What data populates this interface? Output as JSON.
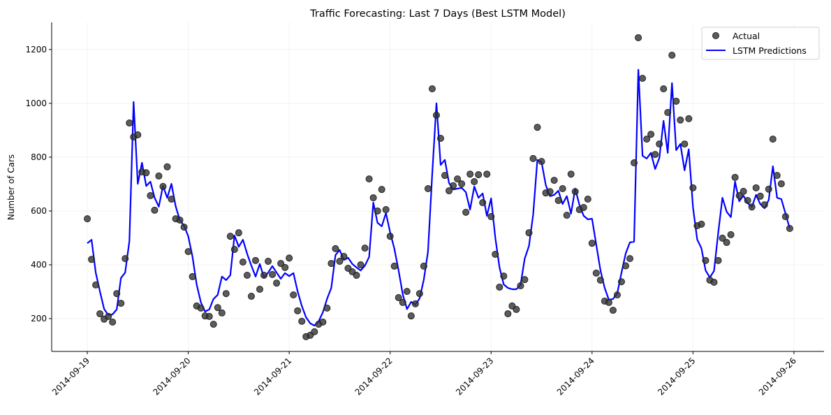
{
  "chart_data": {
    "type": "line",
    "title": "Traffic Forecasting: Last 7 Days (Best LSTM Model)",
    "xlabel": "",
    "ylabel": "Number of Cars",
    "ylim": [
      78,
      1301
    ],
    "xlim_days": [
      -0.353,
      7.298
    ],
    "x_start": "2014-09-19 00:00",
    "x_step": "1 hour",
    "grid": true,
    "legend_position": "top-right",
    "y_ticks": [
      200,
      400,
      600,
      800,
      1000,
      1200
    ],
    "x_ticks": [
      "2014-09-19",
      "2014-09-20",
      "2014-09-21",
      "2014-09-22",
      "2014-09-23",
      "2014-09-24",
      "2014-09-25",
      "2014-09-26"
    ],
    "series": [
      {
        "name": "Actual",
        "kind": "scatter",
        "color": "#333333",
        "values": [
          571,
          420,
          325,
          218,
          198,
          208,
          187,
          293,
          257,
          423,
          927,
          875,
          883,
          745,
          742,
          657,
          603,
          730,
          691,
          764,
          644,
          571,
          566,
          540,
          449,
          356,
          247,
          239,
          210,
          208,
          179,
          241,
          221,
          293,
          506,
          457,
          519,
          410,
          361,
          283,
          416,
          309,
          361,
          413,
          364,
          332,
          405,
          390,
          425,
          288,
          229,
          190,
          133,
          138,
          151,
          179,
          187,
          239,
          405,
          460,
          413,
          431,
          387,
          374,
          361,
          400,
          462,
          719,
          649,
          600,
          680,
          605,
          506,
          395,
          278,
          260,
          301,
          210,
          255,
          293,
          395,
          683,
          1054,
          956,
          870,
          732,
          675,
          694,
          719,
          701,
          595,
          737,
          709,
          735,
          631,
          737,
          579,
          439,
          317,
          358,
          218,
          247,
          234,
          322,
          345,
          519,
          795,
          911,
          784,
          667,
          672,
          714,
          639,
          683,
          584,
          737,
          672,
          605,
          613,
          644,
          480,
          369,
          343,
          265,
          260,
          231,
          288,
          337,
          396,
          423,
          779,
          1244,
          1093,
          867,
          885,
          810,
          849,
          1054,
          966,
          1179,
          1008,
          938,
          849,
          943,
          686,
          545,
          551,
          416,
          343,
          335,
          416,
          499,
          483,
          512,
          725,
          657,
          673,
          639,
          615,
          686,
          655,
          623,
          681,
          867,
          732,
          701,
          579,
          535
        ]
      },
      {
        "name": "LSTM Predictions",
        "kind": "line",
        "color": "#0000ff",
        "values": [
          480,
          493,
          371,
          301,
          236,
          213,
          216,
          234,
          351,
          371,
          488,
          1005,
          701,
          779,
          693,
          709,
          649,
          616,
          693,
          649,
          701,
          618,
          566,
          545,
          506,
          431,
          327,
          260,
          226,
          234,
          273,
          288,
          356,
          343,
          361,
          509,
          467,
          493,
          441,
          397,
          356,
          403,
          353,
          371,
          395,
          371,
          348,
          369,
          358,
          369,
          301,
          247,
          205,
          182,
          174,
          190,
          223,
          273,
          314,
          436,
          455,
          418,
          426,
          403,
          390,
          379,
          397,
          429,
          631,
          556,
          543,
          592,
          520,
          460,
          380,
          290,
          235,
          262,
          252,
          275,
          345,
          449,
          735,
          1000,
          771,
          790,
          704,
          680,
          683,
          686,
          670,
          605,
          691,
          649,
          665,
          582,
          647,
          500,
          390,
          327,
          314,
          309,
          309,
          325,
          423,
          470,
          587,
          790,
          782,
          696,
          655,
          660,
          675,
          626,
          655,
          590,
          683,
          623,
          582,
          569,
          571,
          475,
          379,
          314,
          270,
          273,
          294,
          371,
          442,
          483,
          486,
          1125,
          805,
          795,
          816,
          756,
          797,
          935,
          816,
          1075,
          826,
          849,
          751,
          829,
          613,
          494,
          462,
          379,
          353,
          377,
          519,
          649,
          597,
          577,
          709,
          636,
          657,
          629,
          615,
          660,
          626,
          610,
          641,
          766,
          649,
          644,
          590,
          535
        ]
      }
    ]
  }
}
